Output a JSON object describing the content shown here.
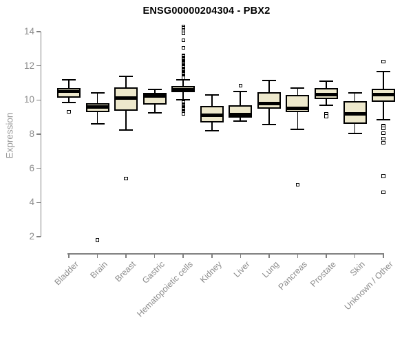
{
  "title": "ENSG00000204304 - PBX2",
  "chart_data": {
    "type": "boxplot",
    "title": "ENSG00000204304 - PBX2",
    "xlabel": "",
    "ylabel": "Expression",
    "ylim": [
      2,
      14
    ],
    "yticks": [
      2,
      4,
      6,
      8,
      10,
      12,
      14
    ],
    "grid": false,
    "legend": "none",
    "colors": {
      "box_fill": "#ede8cc",
      "box_stroke": "#000000",
      "median": "#000000",
      "axis": "#808080",
      "tick_label": "#8c8c8c",
      "title": "#000000"
    },
    "categories": [
      "Bladder",
      "Brain",
      "Breast",
      "Gastric",
      "Hematopoietic cells",
      "Kidney",
      "Liver",
      "Lung",
      "Pancreas",
      "Prostate",
      "Skin",
      "Unknown / Other"
    ],
    "boxes": [
      {
        "name": "Bladder",
        "whisker_low": 9.85,
        "q1": 10.15,
        "median": 10.5,
        "q3": 10.7,
        "whisker_high": 11.2,
        "outliers": [
          9.3
        ]
      },
      {
        "name": "Brain",
        "whisker_low": 8.6,
        "q1": 9.3,
        "median": 9.6,
        "q3": 9.8,
        "whisker_high": 10.4,
        "outliers": [
          1.8
        ]
      },
      {
        "name": "Breast",
        "whisker_low": 8.25,
        "q1": 9.35,
        "median": 10.1,
        "q3": 10.75,
        "whisker_high": 11.4,
        "outliers": [
          5.4
        ]
      },
      {
        "name": "Gastric",
        "whisker_low": 9.25,
        "q1": 9.75,
        "median": 10.25,
        "q3": 10.4,
        "whisker_high": 10.6,
        "outliers": []
      },
      {
        "name": "Hematopoietic cells",
        "whisker_low": 10.0,
        "q1": 10.45,
        "median": 10.6,
        "q3": 10.8,
        "whisker_high": 11.2,
        "outliers": [
          14.3,
          14.2,
          14.1,
          14.0,
          13.9,
          13.5,
          13.05,
          12.6,
          12.55,
          12.5,
          12.45,
          12.4,
          12.35,
          12.3,
          12.25,
          12.2,
          12.15,
          12.1,
          12.05,
          12.0,
          11.95,
          11.9,
          11.85,
          11.8,
          11.75,
          11.7,
          11.65,
          11.6,
          11.55,
          11.5,
          11.45,
          11.4,
          11.35,
          11.3,
          9.9,
          9.85,
          9.75,
          9.7,
          9.65,
          9.6,
          9.55,
          9.5,
          9.45,
          9.4,
          9.35,
          9.3,
          9.25,
          9.2
        ]
      },
      {
        "name": "Kidney",
        "whisker_low": 8.2,
        "q1": 8.7,
        "median": 9.1,
        "q3": 9.65,
        "whisker_high": 10.3,
        "outliers": []
      },
      {
        "name": "Liver",
        "whisker_low": 8.75,
        "q1": 8.95,
        "median": 9.15,
        "q3": 9.7,
        "whisker_high": 10.5,
        "outliers": [
          10.85
        ]
      },
      {
        "name": "Lung",
        "whisker_low": 8.55,
        "q1": 9.5,
        "median": 9.8,
        "q3": 10.45,
        "whisker_high": 11.15,
        "outliers": []
      },
      {
        "name": "Pancreas",
        "whisker_low": 8.3,
        "q1": 9.3,
        "median": 9.5,
        "q3": 10.3,
        "whisker_high": 10.7,
        "outliers": [
          5.05
        ]
      },
      {
        "name": "Prostate",
        "whisker_low": 9.7,
        "q1": 10.05,
        "median": 10.3,
        "q3": 10.7,
        "whisker_high": 11.1,
        "outliers": [
          9.2,
          9.05
        ]
      },
      {
        "name": "Skin",
        "whisker_low": 8.05,
        "q1": 8.6,
        "median": 9.2,
        "q3": 9.95,
        "whisker_high": 10.4,
        "outliers": []
      },
      {
        "name": "Unknown / Other",
        "whisker_low": 8.85,
        "q1": 9.9,
        "median": 10.3,
        "q3": 10.65,
        "whisker_high": 11.65,
        "outliers": [
          12.25,
          8.5,
          8.45,
          8.35,
          8.05,
          7.75,
          7.5,
          5.55,
          4.6
        ]
      }
    ]
  }
}
